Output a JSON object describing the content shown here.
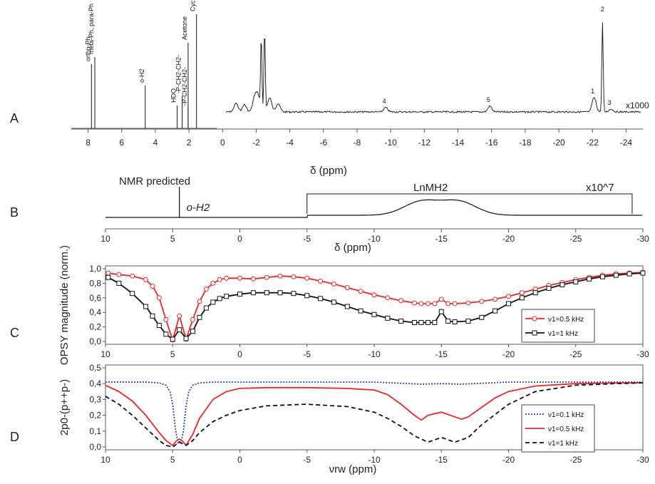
{
  "chart_data": [
    {
      "panel": "A",
      "type": "line",
      "panel_letter": "A",
      "xlabel": "δ (ppm)",
      "xlim": [
        9,
        -25
      ],
      "xticks": [
        8,
        6,
        4,
        2,
        0,
        -2,
        -4,
        -6,
        -8,
        -10,
        -12,
        -14,
        -16,
        -18,
        -20,
        -22,
        -24
      ],
      "scale_label": "x1000",
      "left_peaks": [
        {
          "x": 7.8,
          "h": 0.9,
          "label": "ortho-Ph"
        },
        {
          "x": 7.6,
          "h": 1.0,
          "label": "meta-Ph, para-Ph"
        },
        {
          "x": 4.6,
          "h": 0.6,
          "label": "o-H2"
        },
        {
          "x": 2.7,
          "h": 0.32,
          "label": "HDO"
        },
        {
          "x": 2.4,
          "h": 0.45,
          "label": "-P-CH2-CH2-"
        },
        {
          "x": 2.05,
          "h": 0.28,
          "label": "-P-CH2-CH2-"
        },
        {
          "x": 2.05,
          "h": 1.2,
          "label": "Acetone"
        },
        {
          "x": 1.55,
          "h": 1.6,
          "label": "Cyclooctane"
        }
      ],
      "right_peaks": [
        {
          "x": -0.8,
          "h": 0.12
        },
        {
          "x": -1.3,
          "h": 0.1
        },
        {
          "x": -1.9,
          "h": 0.18
        },
        {
          "x": -2.1,
          "h": 0.22
        },
        {
          "x": -2.3,
          "h": 1.0
        },
        {
          "x": -2.5,
          "h": 1.15
        },
        {
          "x": -2.8,
          "h": 0.2
        },
        {
          "x": -3.3,
          "h": 0.12
        },
        {
          "x": -9.7,
          "h": 0.06,
          "label": "4"
        },
        {
          "x": -15.9,
          "h": 0.08,
          "label": "5"
        },
        {
          "x": -22.1,
          "h": 0.2,
          "label": "1"
        },
        {
          "x": -22.6,
          "h": 1.25,
          "label": "2"
        },
        {
          "x": -23.1,
          "h": 0.04,
          "label": "3"
        }
      ]
    },
    {
      "panel": "B",
      "type": "line",
      "panel_letter": "B",
      "title": "NMR predicted",
      "xlabel": "δ (ppm)",
      "xlim": [
        10,
        -30
      ],
      "xticks": [
        10,
        5,
        0,
        -5,
        -10,
        -15,
        -20,
        -25,
        -30
      ],
      "peak_label": "o-H2",
      "peak_x": 4.5,
      "hump_label": "LnMH2",
      "scale_label": "x10^7",
      "bracket": [
        -5,
        -29.2
      ],
      "hump_peaks": [
        -13.5,
        -16.3
      ]
    },
    {
      "panel": "C",
      "type": "line",
      "panel_letter": "C",
      "ylabel": "OPSY magnitude (norm.)",
      "xlim": [
        10,
        -30
      ],
      "ylim": [
        0,
        1.0
      ],
      "yticks": [
        "0,0",
        "0,2",
        "0,4",
        "0,6",
        "0,8",
        "1,0"
      ],
      "xticks": [
        10,
        5,
        0,
        -5,
        -10,
        -15,
        -20,
        -25,
        -30
      ],
      "series": [
        {
          "name": "ν1=0.5 kHz",
          "color": "#e8262a",
          "marker": "circle",
          "x": [
            9.8,
            9,
            8,
            7,
            6.5,
            6,
            5.5,
            5,
            4.5,
            4,
            3.5,
            3,
            2.5,
            2,
            1.5,
            1,
            0,
            -1,
            -2,
            -3,
            -4,
            -5,
            -6,
            -7,
            -8,
            -9,
            -10,
            -11,
            -12,
            -13,
            -13.5,
            -14,
            -14.5,
            -15,
            -15.5,
            -16,
            -17,
            -18,
            -19,
            -20,
            -21,
            -22,
            -23,
            -24,
            -25,
            -26,
            -27,
            -28,
            -29,
            -30
          ],
          "y": [
            0.94,
            0.92,
            0.9,
            0.85,
            0.76,
            0.6,
            0.3,
            0.02,
            0.35,
            0.03,
            0.3,
            0.55,
            0.72,
            0.8,
            0.85,
            0.87,
            0.87,
            0.86,
            0.88,
            0.9,
            0.89,
            0.87,
            0.83,
            0.79,
            0.74,
            0.69,
            0.64,
            0.6,
            0.56,
            0.53,
            0.52,
            0.52,
            0.52,
            0.58,
            0.52,
            0.52,
            0.53,
            0.55,
            0.58,
            0.62,
            0.67,
            0.72,
            0.77,
            0.81,
            0.85,
            0.88,
            0.91,
            0.93,
            0.94,
            0.95
          ]
        },
        {
          "name": "ν1=1 kHz",
          "color": "#111111",
          "marker": "square",
          "x": [
            9.8,
            9,
            8,
            7,
            6.5,
            6,
            5.5,
            5,
            4.5,
            4,
            3.5,
            3,
            2.5,
            2,
            1.5,
            1,
            0,
            -1,
            -2,
            -3,
            -4,
            -5,
            -6,
            -7,
            -8,
            -9,
            -10,
            -11,
            -12,
            -13,
            -13.5,
            -14,
            -14.5,
            -15,
            -15.5,
            -16,
            -17,
            -18,
            -19,
            -20,
            -21,
            -22,
            -23,
            -24,
            -25,
            -26,
            -27,
            -28,
            -29,
            -30
          ],
          "y": [
            0.88,
            0.8,
            0.66,
            0.48,
            0.35,
            0.22,
            0.1,
            0.03,
            0.16,
            0.04,
            0.14,
            0.33,
            0.46,
            0.54,
            0.59,
            0.62,
            0.65,
            0.67,
            0.67,
            0.67,
            0.66,
            0.63,
            0.59,
            0.54,
            0.48,
            0.42,
            0.37,
            0.32,
            0.28,
            0.26,
            0.26,
            0.26,
            0.26,
            0.41,
            0.28,
            0.27,
            0.28,
            0.33,
            0.42,
            0.52,
            0.6,
            0.67,
            0.73,
            0.78,
            0.82,
            0.86,
            0.89,
            0.91,
            0.93,
            0.94
          ]
        }
      ]
    },
    {
      "panel": "D",
      "type": "line",
      "panel_letter": "D",
      "ylabel": "2p0-(p++p-)",
      "xlabel": "νrw (ppm)",
      "xlim": [
        10,
        -30
      ],
      "ylim": [
        0,
        0.5
      ],
      "yticks": [
        "0,0",
        "0,1",
        "0,2",
        "0,3",
        "0,4",
        "0,5"
      ],
      "xticks": [
        10,
        5,
        0,
        -5,
        -10,
        -15,
        -20,
        -25,
        -30
      ],
      "series": [
        {
          "name": "ν1=0.1 kHz",
          "color": "#2c3fb5",
          "dash": "2,2",
          "x": [
            10,
            8,
            7,
            6,
            5.5,
            5.2,
            5.0,
            4.8,
            4.6,
            4.5,
            4.4,
            4.2,
            4.0,
            3.8,
            3.5,
            3,
            2,
            0,
            -5,
            -10,
            -13.5,
            -15,
            -16.5,
            -20,
            -25,
            -30
          ],
          "y": [
            0.41,
            0.41,
            0.41,
            0.405,
            0.39,
            0.35,
            0.27,
            0.12,
            0.02,
            0.04,
            0.02,
            0.1,
            0.26,
            0.35,
            0.39,
            0.405,
            0.41,
            0.41,
            0.41,
            0.41,
            0.397,
            0.4,
            0.397,
            0.41,
            0.41,
            0.41
          ]
        },
        {
          "name": "ν1=0.5 kHz",
          "color": "#e8262a",
          "dash": "",
          "x": [
            10,
            9,
            8,
            7,
            6,
            5.5,
            5,
            4.7,
            4.5,
            4.3,
            4,
            3.5,
            3,
            2,
            1,
            0,
            -2,
            -5,
            -8,
            -10,
            -11,
            -12,
            -13,
            -13.5,
            -14,
            -15,
            -16,
            -16.5,
            -17,
            -18,
            -19,
            -20,
            -22,
            -25,
            -28,
            -30
          ],
          "y": [
            0.39,
            0.35,
            0.29,
            0.2,
            0.09,
            0.04,
            0.01,
            0.04,
            0.05,
            0.04,
            0.01,
            0.08,
            0.18,
            0.3,
            0.35,
            0.37,
            0.375,
            0.375,
            0.37,
            0.36,
            0.33,
            0.27,
            0.2,
            0.17,
            0.2,
            0.22,
            0.19,
            0.175,
            0.19,
            0.25,
            0.31,
            0.35,
            0.385,
            0.4,
            0.405,
            0.405
          ]
        },
        {
          "name": "ν1=1 kHz",
          "color": "#111111",
          "dash": "6,4",
          "x": [
            10,
            9,
            8,
            7,
            6,
            5.5,
            5,
            4.5,
            4,
            3.5,
            3,
            2,
            1,
            0,
            -2,
            -5,
            -8,
            -10,
            -11,
            -12,
            -13,
            -14,
            -15,
            -16,
            -17,
            -18,
            -20,
            -22,
            -25,
            -28,
            -30
          ],
          "y": [
            0.32,
            0.27,
            0.2,
            0.12,
            0.04,
            0.01,
            0.0,
            0.03,
            0.01,
            0.04,
            0.09,
            0.16,
            0.2,
            0.23,
            0.26,
            0.27,
            0.255,
            0.22,
            0.18,
            0.13,
            0.07,
            0.03,
            0.06,
            0.03,
            0.06,
            0.14,
            0.27,
            0.35,
            0.39,
            0.4,
            0.405
          ]
        }
      ]
    }
  ]
}
